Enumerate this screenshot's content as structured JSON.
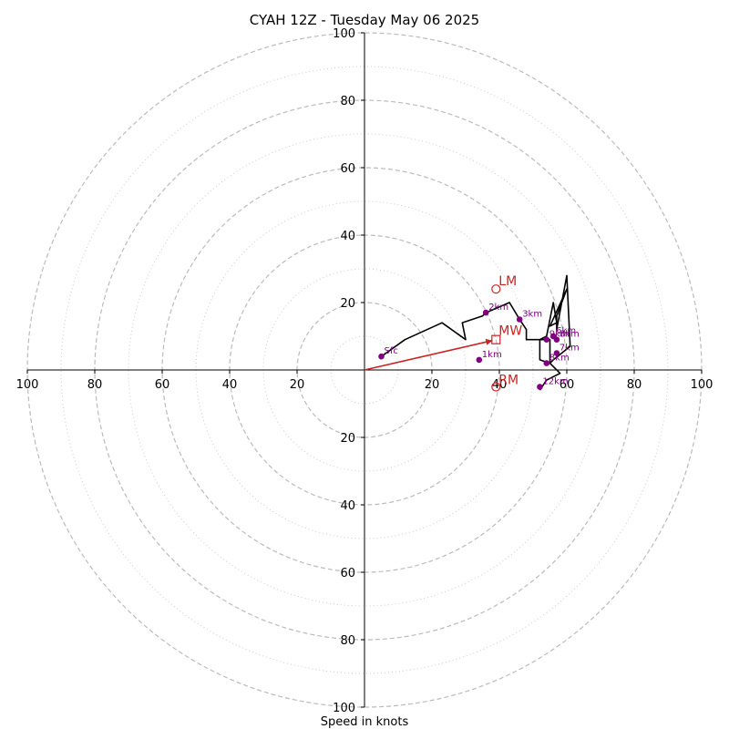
{
  "chart_data": {
    "type": "hodograph",
    "title": "CYAH 12Z - Tuesday May 06 2025",
    "xlabel": "Speed in knots",
    "xlim": [
      -100,
      100
    ],
    "ylim": [
      -100,
      100
    ],
    "ring_major": [
      20,
      40,
      60,
      80,
      100
    ],
    "ring_minor": [
      10,
      30,
      50,
      70,
      90
    ],
    "x_tick_labels": [
      "100",
      "80",
      "60",
      "40",
      "20",
      "20",
      "40",
      "60",
      "80",
      "100"
    ],
    "x_tick_values": [
      -100,
      -80,
      -60,
      -40,
      -20,
      20,
      40,
      60,
      80,
      100
    ],
    "y_tick_labels": [
      "100",
      "80",
      "60",
      "40",
      "20",
      "20",
      "40",
      "60",
      "80",
      "100"
    ],
    "y_tick_values": [
      100,
      80,
      60,
      40,
      20,
      -20,
      -40,
      -60,
      -80,
      -100
    ],
    "wind_profile": {
      "u": [
        5,
        12,
        23,
        30,
        29,
        35,
        36,
        43,
        46,
        48,
        48,
        52,
        54,
        56,
        57,
        55,
        60,
        57,
        57,
        60,
        61,
        56,
        55,
        55,
        52,
        52,
        55,
        58,
        54,
        52
      ],
      "v": [
        4,
        9,
        14,
        9,
        14,
        16,
        17,
        20,
        15,
        12,
        9,
        9,
        10,
        20,
        14,
        13,
        24,
        16,
        12,
        28,
        7,
        3,
        2,
        9,
        9,
        3,
        2,
        -1,
        -3,
        -6
      ]
    },
    "height_markers": [
      {
        "label": "Sfc",
        "u": 5,
        "v": 4
      },
      {
        "label": "1km",
        "u": 34,
        "v": 3
      },
      {
        "label": "2km",
        "u": 36,
        "v": 17
      },
      {
        "label": "3km",
        "u": 46,
        "v": 15
      },
      {
        "label": "6km",
        "u": 56,
        "v": 10
      },
      {
        "label": "8km",
        "u": 57,
        "v": 9
      },
      {
        "label": "7km",
        "u": 57,
        "v": 5
      },
      {
        "label": "9km",
        "u": 54,
        "v": 9
      },
      {
        "label": "8km",
        "u": 54,
        "v": 2
      },
      {
        "label": "12km",
        "u": 52,
        "v": -5
      }
    ],
    "mean_wind": {
      "label": "MW",
      "u": 39,
      "v": 9
    },
    "left_mover": {
      "label": "LM",
      "u": 39,
      "v": 24
    },
    "right_mover": {
      "label": "RM",
      "u": 39,
      "v": -5
    },
    "colors": {
      "profile": "#000000",
      "height_marker": "#800080",
      "motion": "#cc2222",
      "ring": "#bbbbbb",
      "axis": "#000000"
    }
  }
}
